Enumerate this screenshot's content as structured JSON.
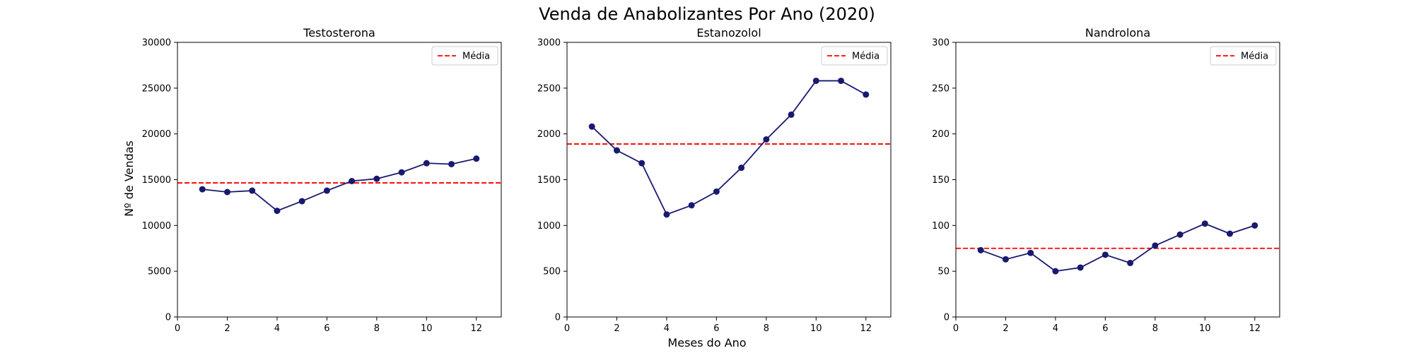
{
  "title": "Venda de Anabolizantes Por Ano (2020)",
  "xlabel": "Meses do Ano",
  "ylabel": "Nº de Vendas",
  "colors": {
    "line": "#191970",
    "mean": "#ff0000"
  },
  "chart_data": [
    {
      "type": "line",
      "title": "Testosterona",
      "x": [
        1,
        2,
        3,
        4,
        5,
        6,
        7,
        8,
        9,
        10,
        11,
        12
      ],
      "values": [
        13950,
        13650,
        13800,
        11600,
        12650,
        13800,
        14850,
        15100,
        15800,
        16800,
        16700,
        17300
      ],
      "mean": 14650,
      "xlim": [
        0,
        13
      ],
      "ylim": [
        0,
        30000
      ],
      "xticks": [
        0,
        2,
        4,
        6,
        8,
        10,
        12
      ],
      "yticks": [
        0,
        5000,
        10000,
        15000,
        20000,
        25000,
        30000
      ],
      "legend": [
        "Média"
      ],
      "legend_position": "top-right",
      "grid": false
    },
    {
      "type": "line",
      "title": "Estanozolol",
      "x": [
        1,
        2,
        3,
        4,
        5,
        6,
        7,
        8,
        9,
        10,
        11,
        12
      ],
      "values": [
        2080,
        1820,
        1680,
        1120,
        1220,
        1370,
        1630,
        1940,
        2210,
        2580,
        2580,
        2430
      ],
      "mean": 1890,
      "xlim": [
        0,
        13
      ],
      "ylim": [
        0,
        3000
      ],
      "xticks": [
        0,
        2,
        4,
        6,
        8,
        10,
        12
      ],
      "yticks": [
        0,
        500,
        1000,
        1500,
        2000,
        2500,
        3000
      ],
      "legend": [
        "Média"
      ],
      "legend_position": "top-right",
      "grid": false
    },
    {
      "type": "line",
      "title": "Nandrolona",
      "x": [
        1,
        2,
        3,
        4,
        5,
        6,
        7,
        8,
        9,
        10,
        11,
        12
      ],
      "values": [
        73,
        63,
        70,
        50,
        54,
        68,
        59,
        78,
        90,
        102,
        91,
        100
      ],
      "mean": 75,
      "xlim": [
        0,
        13
      ],
      "ylim": [
        0,
        300
      ],
      "xticks": [
        0,
        2,
        4,
        6,
        8,
        10,
        12
      ],
      "yticks": [
        0,
        50,
        100,
        150,
        200,
        250,
        300
      ],
      "legend": [
        "Média"
      ],
      "legend_position": "top-right",
      "grid": false
    }
  ]
}
